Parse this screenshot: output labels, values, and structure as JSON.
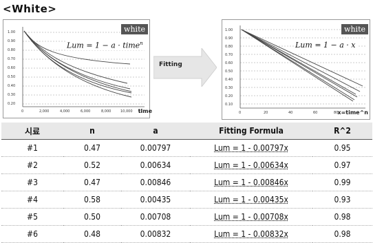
{
  "title": "<White>",
  "charts": [
    {
      "badge": "white",
      "formula": "Lum = 1 − a · time",
      "formula_exp": "n",
      "x_axis_label": "time",
      "x_ticks": [
        "0",
        "2,000",
        "4,000",
        "6,000",
        "8,000",
        "10,000",
        "12"
      ],
      "y_ticks": [
        "1.00",
        "0.90",
        "0.80",
        "0.70",
        "0.60",
        "0.50",
        "0.40",
        "0.30",
        "0.20",
        "0.10"
      ]
    },
    {
      "badge": "white",
      "formula": "Lum = 1 − a · x",
      "x_axis_label": "x=time^n",
      "x_ticks": [
        "0",
        "20",
        "40",
        "60",
        "80"
      ],
      "y_ticks": [
        "1.00",
        "0.90",
        "0.80",
        "0.70",
        "0.60",
        "0.50",
        "0.40",
        "0.30",
        "0.20",
        "0.10"
      ]
    }
  ],
  "arrow_label": "Fitting",
  "table": {
    "headers": [
      "시료",
      "n",
      "a",
      "Fitting Formula",
      "R^2"
    ],
    "rows": [
      {
        "id": "#1",
        "n": "0.47",
        "a": "0.00797",
        "formula": "Lum = 1 - 0.00797x",
        "r2": "0.95"
      },
      {
        "id": "#2",
        "n": "0.52",
        "a": "0.00634",
        "formula": "Lum = 1 - 0.00634x",
        "r2": "0.97"
      },
      {
        "id": "#3",
        "n": "0.47",
        "a": "0.00846",
        "formula": "Lum = 1 - 0.00846x",
        "r2": "0.99"
      },
      {
        "id": "#4",
        "n": "0.58",
        "a": "0.00435",
        "formula": "Lum = 1 - 0.00435x",
        "r2": "0.93"
      },
      {
        "id": "#5",
        "n": "0.50",
        "a": "0.00708",
        "formula": "Lum = 1 - 0.00708x",
        "r2": "0.98"
      },
      {
        "id": "#6",
        "n": "0.48",
        "a": "0.00832",
        "formula": "Lum = 1 - 0.00832x",
        "r2": "0.98"
      }
    ]
  },
  "colors": {
    "badge_bg": "#555555",
    "header_bg": "#e8e8e8",
    "curve": "#444444",
    "grid": "#bbbbbb"
  }
}
